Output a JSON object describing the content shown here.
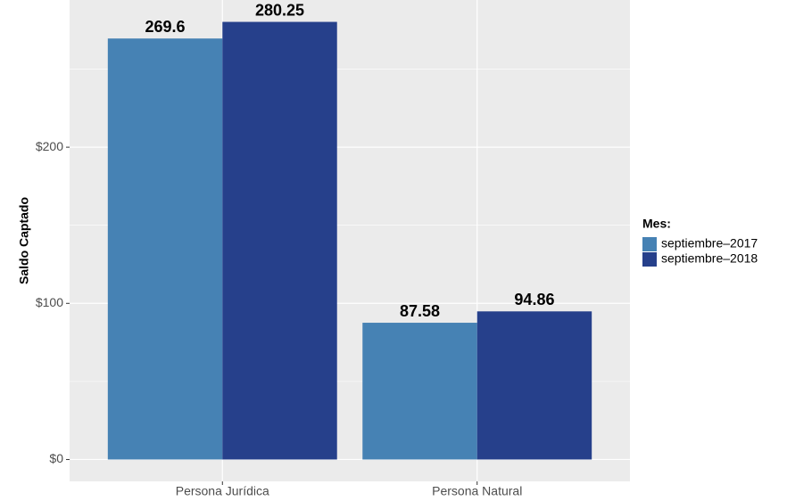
{
  "chart_data": {
    "type": "bar",
    "y_label": "Saldo Captado",
    "categories": [
      "Persona Jurídica",
      "Persona Natural"
    ],
    "series": [
      {
        "name": "septiembre–2017",
        "color": "#4682b4",
        "values": [
          269.6,
          87.58
        ]
      },
      {
        "name": "septiembre–2018",
        "color": "#26408b",
        "values": [
          280.25,
          94.86
        ]
      }
    ],
    "ylim": [
      -14.01,
      294.26
    ],
    "yticks": [
      {
        "value": 0,
        "label": "$0"
      },
      {
        "value": 100,
        "label": "$100"
      },
      {
        "value": 200,
        "label": "$200"
      }
    ],
    "minor_yticks": [
      50,
      150,
      250
    ],
    "grid": true,
    "legend_title": "Mes:",
    "legend_position": "right"
  }
}
